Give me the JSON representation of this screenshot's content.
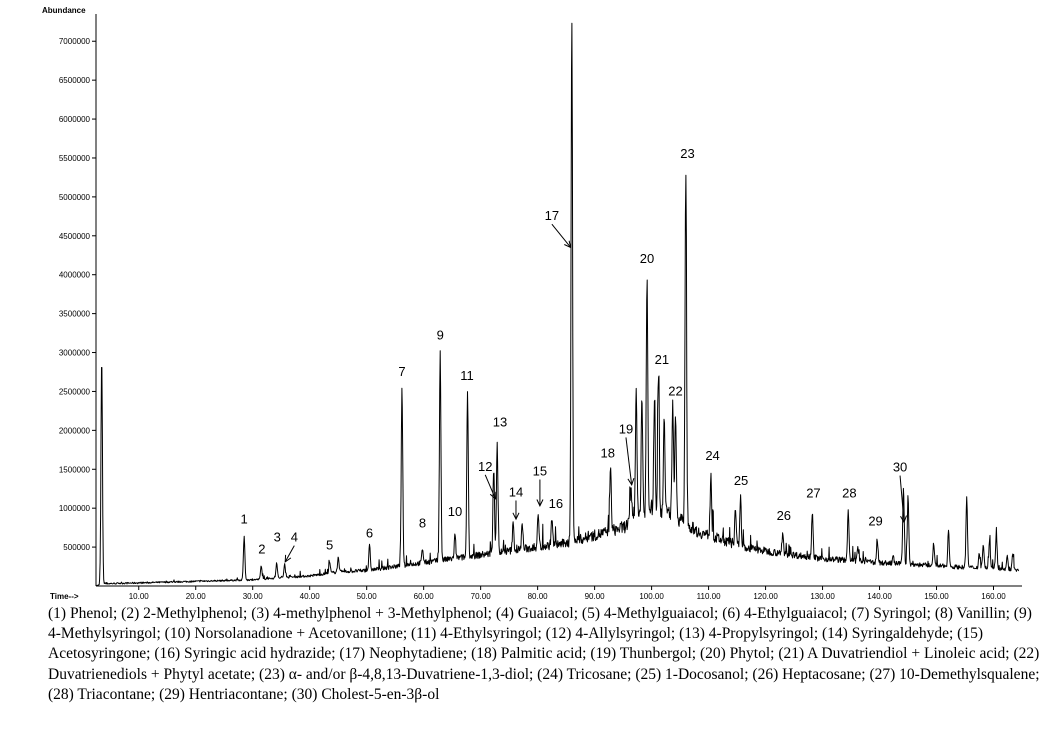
{
  "chart_data": {
    "type": "line",
    "ylabel": "Abundance",
    "xlabel": "Time-->",
    "xlim": [
      2.5,
      165
    ],
    "ylim": [
      0,
      7350000
    ],
    "x_ticks": [
      "10.00",
      "20.00",
      "30.00",
      "40.00",
      "50.00",
      "60.00",
      "70.00",
      "80.00",
      "90.00",
      "100.00",
      "110.00",
      "120.00",
      "130.00",
      "140.00",
      "150.00",
      "160.00"
    ],
    "x_tick_values": [
      10,
      20,
      30,
      40,
      50,
      60,
      70,
      80,
      90,
      100,
      110,
      120,
      130,
      140,
      150,
      160
    ],
    "y_ticks": [
      "500000",
      "1000000",
      "1500000",
      "2000000",
      "2500000",
      "3000000",
      "3500000",
      "4000000",
      "4500000",
      "5000000",
      "5500000",
      "6000000",
      "6500000",
      "7000000"
    ],
    "y_tick_values": [
      500000,
      1000000,
      1500000,
      2000000,
      2500000,
      3000000,
      3500000,
      4000000,
      4500000,
      5000000,
      5500000,
      6000000,
      6500000,
      7000000
    ],
    "series": [
      {
        "baseline": [
          [
            2.5,
            0
          ],
          [
            4,
            30000
          ],
          [
            10,
            40000
          ],
          [
            20,
            60000
          ],
          [
            30,
            80000
          ],
          [
            40,
            130000
          ],
          [
            45,
            180000
          ],
          [
            50,
            200000
          ],
          [
            55,
            250000
          ],
          [
            60,
            300000
          ],
          [
            65,
            350000
          ],
          [
            70,
            400000
          ],
          [
            75,
            450000
          ],
          [
            80,
            500000
          ],
          [
            85,
            550000
          ],
          [
            90,
            650000
          ],
          [
            95,
            750000
          ],
          [
            98,
            900000
          ],
          [
            100,
            1000000
          ],
          [
            103,
            950000
          ],
          [
            105,
            850000
          ],
          [
            108,
            700000
          ],
          [
            112,
            600000
          ],
          [
            116,
            500000
          ],
          [
            120,
            450000
          ],
          [
            125,
            400000
          ],
          [
            130,
            350000
          ],
          [
            135,
            330000
          ],
          [
            140,
            300000
          ],
          [
            145,
            280000
          ],
          [
            150,
            260000
          ],
          [
            155,
            240000
          ],
          [
            160,
            230000
          ],
          [
            164,
            200000
          ]
        ],
        "peaks": [
          [
            3.5,
            2940000
          ],
          [
            28.5,
            630000
          ],
          [
            31.5,
            260000
          ],
          [
            34.2,
            300000
          ],
          [
            35.6,
            290000
          ],
          [
            43.5,
            300000
          ],
          [
            45,
            360000
          ],
          [
            50.5,
            520000
          ],
          [
            56.2,
            2550000
          ],
          [
            59.8,
            480000
          ],
          [
            62.9,
            3000000
          ],
          [
            65.5,
            650000
          ],
          [
            67.7,
            2500000
          ],
          [
            72.3,
            1500000
          ],
          [
            72.9,
            1850000
          ],
          [
            75.7,
            800000
          ],
          [
            77.3,
            780000
          ],
          [
            80.1,
            920000
          ],
          [
            82.5,
            880000
          ],
          [
            86.0,
            7300000
          ],
          [
            92.8,
            1500000
          ],
          [
            96.4,
            1250000
          ],
          [
            97.3,
            2600000
          ],
          [
            98.3,
            2450000
          ],
          [
            99.2,
            3950000
          ],
          [
            100.5,
            2300000
          ],
          [
            101.2,
            2700000
          ],
          [
            102.2,
            2150000
          ],
          [
            103.7,
            2300000
          ],
          [
            104.2,
            2250000
          ],
          [
            106.0,
            5300000
          ],
          [
            107.5,
            750000
          ],
          [
            110.4,
            1450000
          ],
          [
            114.7,
            950000
          ],
          [
            115.6,
            1130000
          ],
          [
            123,
            650000
          ],
          [
            128.2,
            950000
          ],
          [
            134.5,
            950000
          ],
          [
            136.2,
            500000
          ],
          [
            139.6,
            600000
          ],
          [
            142.4,
            370000
          ],
          [
            144.2,
            1280000
          ],
          [
            145.0,
            1150000
          ],
          [
            149.5,
            560000
          ],
          [
            152.1,
            720000
          ],
          [
            155.3,
            1150000
          ],
          [
            157.5,
            420000
          ],
          [
            158.2,
            550000
          ],
          [
            159.3,
            570000
          ],
          [
            160.5,
            680000
          ],
          [
            162.4,
            380000
          ],
          [
            163.4,
            420000
          ]
        ]
      }
    ],
    "annotations": [
      {
        "label": "1",
        "x": 28.5,
        "y": 800000,
        "arrow": false
      },
      {
        "label": "2",
        "x": 31.6,
        "y": 420000,
        "arrow": false
      },
      {
        "label": "3",
        "x": 34.3,
        "y": 570000,
        "arrow": false
      },
      {
        "label": "4",
        "x": 37.3,
        "y": 570000,
        "arrow": true,
        "tip_x": 35.7,
        "tip_y": 310000
      },
      {
        "label": "5",
        "x": 43.5,
        "y": 470000,
        "arrow": false
      },
      {
        "label": "6",
        "x": 50.5,
        "y": 620000,
        "arrow": false
      },
      {
        "label": "7",
        "x": 56.2,
        "y": 2700000,
        "arrow": false
      },
      {
        "label": "8",
        "x": 59.8,
        "y": 750000,
        "arrow": false
      },
      {
        "label": "9",
        "x": 62.9,
        "y": 3170000,
        "arrow": false
      },
      {
        "label": "10",
        "x": 65.5,
        "y": 900000,
        "arrow": false
      },
      {
        "label": "11",
        "x": 67.6,
        "y": 2650000,
        "arrow": false
      },
      {
        "label": "12",
        "x": 70.8,
        "y": 1480000,
        "arrow": true,
        "tip_x": 72.6,
        "tip_y": 1120000
      },
      {
        "label": "13",
        "x": 73.4,
        "y": 2050000,
        "arrow": false
      },
      {
        "label": "14",
        "x": 76.2,
        "y": 1150000,
        "arrow": true,
        "tip_x": 76.2,
        "tip_y": 860000
      },
      {
        "label": "15",
        "x": 80.4,
        "y": 1420000,
        "arrow": true,
        "tip_x": 80.4,
        "tip_y": 1030000
      },
      {
        "label": "16",
        "x": 83.2,
        "y": 1000000,
        "arrow": false
      },
      {
        "label": "17",
        "x": 82.5,
        "y": 4700000,
        "arrow": true,
        "tip_x": 85.8,
        "tip_y": 4350000
      },
      {
        "label": "18",
        "x": 92.3,
        "y": 1650000,
        "arrow": false
      },
      {
        "label": "19",
        "x": 95.5,
        "y": 1960000,
        "arrow": true,
        "tip_x": 96.5,
        "tip_y": 1300000
      },
      {
        "label": "20",
        "x": 99.2,
        "y": 4150000,
        "arrow": false
      },
      {
        "label": "21",
        "x": 101.8,
        "y": 2850000,
        "arrow": false
      },
      {
        "label": "22",
        "x": 104.2,
        "y": 2450000,
        "arrow": false
      },
      {
        "label": "23",
        "x": 106.3,
        "y": 5500000,
        "arrow": false
      },
      {
        "label": "24",
        "x": 110.7,
        "y": 1620000,
        "arrow": false
      },
      {
        "label": "25",
        "x": 115.7,
        "y": 1300000,
        "arrow": false
      },
      {
        "label": "26",
        "x": 123.2,
        "y": 850000,
        "arrow": false
      },
      {
        "label": "27",
        "x": 128.4,
        "y": 1140000,
        "arrow": false
      },
      {
        "label": "28",
        "x": 134.7,
        "y": 1140000,
        "arrow": false
      },
      {
        "label": "29",
        "x": 139.3,
        "y": 780000,
        "arrow": false
      },
      {
        "label": "30",
        "x": 143.6,
        "y": 1470000,
        "arrow": true,
        "tip_x": 144.3,
        "tip_y": 820000
      }
    ]
  },
  "caption": {
    "text": "(1) Phenol; (2) 2-Methylphenol; (3) 4-methylphenol + 3-Methylphenol; (4) Guaiacol; (5) 4-Methylguaiacol; (6) 4-Ethylguaiacol; (7) Syringol; (8) Vanillin; (9) 4-Methylsyringol; (10) Norsolanadione + Acetovanillone; (11) 4-Ethylsyringol; (12) 4-Allylsyringol; (13) 4-Propylsyringol; (14) Syringaldehyde; (15) Acetosyringone; (16) Syringic acid hydrazide; (17) Neophytadiene; (18) Palmitic acid; (19) Thunbergol; (20) Phytol; (21) A Duvatriendiol + Linoleic acid; (22) Duvatrienediols + Phytyl acetate; (23) α- and/or β-4,8,13-Duvatriene-1,3-diol; (24) Tricosane; (25) 1-Docosanol; (26) Heptacosane; (27) 10-Demethylsqualene; (28) Triacontane; (29) Hentriacontane; (30) Cholest-5-en-3β-ol"
  }
}
